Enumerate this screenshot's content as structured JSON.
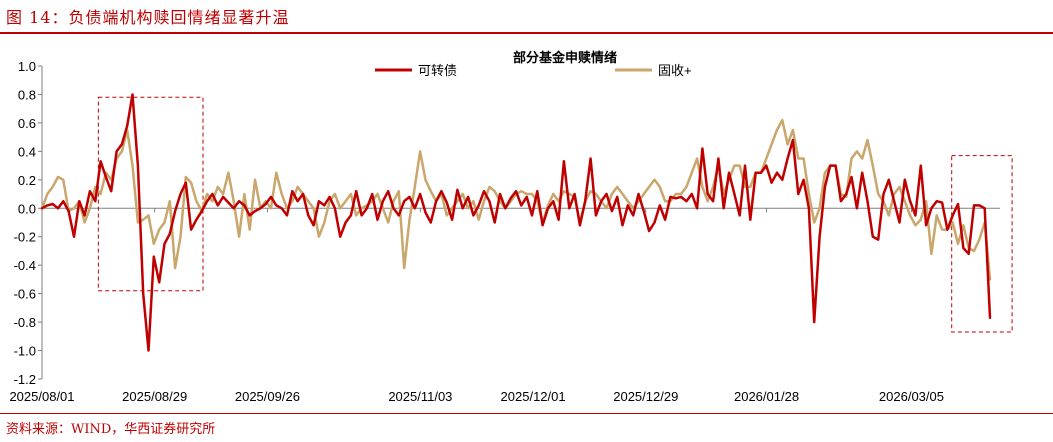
{
  "figure_title": "图 14：负债端机构赎回情绪显著升温",
  "source": "资料来源：WIND，华西证券研究所",
  "chart_data": {
    "type": "line",
    "title": "部分基金申赎情绪",
    "xlabel": "",
    "ylabel": "",
    "ylim": [
      -1.2,
      1.0
    ],
    "yticks": [
      1.0,
      0.8,
      0.6,
      0.4,
      0.2,
      0.0,
      -0.2,
      -0.4,
      -0.6,
      -0.8,
      -1.0,
      -1.2
    ],
    "ytick_labels": [
      "1.0",
      "0.8",
      "0.6",
      "0.4",
      "0.2",
      "0.0",
      "-0.2",
      "-0.4",
      "-0.6",
      "-0.8",
      "-1.0",
      "-1.2"
    ],
    "x_start": "2025/08/01",
    "x_end": "2026/03/27",
    "xticks": [
      "2025/08/01",
      "2025/08/29",
      "2025/09/26",
      "2025/11/03",
      "2025/12/01",
      "2025/12/29",
      "2026/01/28",
      "2026/03/05"
    ],
    "grid": false,
    "legend_position": "top-center",
    "colors": {
      "可转债": "#c00000",
      "固收+": "#c9a66b",
      "highlight_box": "#c00000"
    },
    "series": [
      {
        "name": "可转债",
        "values": [
          0.0,
          0.02,
          0.03,
          0.0,
          0.05,
          -0.02,
          -0.2,
          0.05,
          -0.05,
          0.12,
          0.05,
          0.33,
          0.22,
          0.12,
          0.4,
          0.45,
          0.58,
          0.8,
          0.3,
          -0.6,
          -1.0,
          -0.34,
          -0.52,
          -0.25,
          -0.18,
          -0.02,
          0.1,
          0.18,
          -0.15,
          -0.08,
          -0.02,
          0.05,
          0.1,
          0.02,
          0.08,
          0.04,
          0.0,
          0.05,
          0.02,
          -0.05,
          -0.02,
          0.0,
          0.03,
          0.08,
          0.02,
          0.0,
          -0.05,
          0.12,
          0.05,
          0.1,
          -0.05,
          -0.12,
          0.05,
          0.02,
          0.08,
          0.0,
          -0.2,
          -0.1,
          -0.05,
          0.12,
          -0.05,
          0.0,
          0.1,
          -0.08,
          0.05,
          0.12,
          0.0,
          -0.05,
          0.05,
          0.08,
          0.0,
          0.1,
          -0.03,
          -0.1,
          0.05,
          0.12,
          0.04,
          -0.08,
          0.13,
          0.0,
          0.08,
          -0.05,
          0.02,
          0.12,
          0.05,
          -0.1,
          0.1,
          0.0,
          0.07,
          0.12,
          0.02,
          0.08,
          -0.05,
          0.12,
          -0.12,
          0.0,
          0.05,
          -0.08,
          0.33,
          0.0,
          0.1,
          -0.12,
          0.05,
          0.35,
          -0.05,
          0.05,
          0.1,
          -0.02,
          0.08,
          -0.12,
          0.02,
          -0.05,
          0.1,
          -0.02,
          -0.16,
          -0.1,
          0.02,
          -0.08,
          0.08,
          0.07,
          0.08,
          0.05,
          0.1,
          0.0,
          0.42,
          0.1,
          0.05,
          0.35,
          0.0,
          0.25,
          0.1,
          -0.05,
          0.3,
          -0.08,
          0.25,
          0.25,
          0.3,
          0.18,
          0.25,
          0.2,
          0.35,
          0.48,
          0.1,
          0.2,
          0.0,
          -0.8,
          -0.2,
          0.15,
          0.3,
          0.3,
          0.05,
          0.1,
          0.22,
          0.0,
          0.25,
          0.05,
          -0.2,
          -0.22,
          0.1,
          0.2,
          0.05,
          -0.1,
          0.2,
          0.05,
          -0.05,
          0.3,
          -0.12,
          0.0,
          0.05,
          0.04,
          -0.15,
          -0.05,
          0.03,
          -0.28,
          -0.32,
          0.02,
          0.02,
          0.0,
          -0.77
        ]
      },
      {
        "name": "固收+",
        "values": [
          0.0,
          0.1,
          0.15,
          0.22,
          0.2,
          -0.02,
          0.0,
          0.05,
          -0.1,
          0.0,
          0.15,
          0.1,
          0.25,
          0.2,
          0.35,
          0.4,
          0.55,
          0.3,
          -0.1,
          -0.08,
          -0.05,
          -0.25,
          -0.15,
          -0.1,
          0.05,
          -0.42,
          -0.2,
          0.22,
          0.18,
          0.05,
          -0.02,
          0.1,
          0.05,
          0.15,
          0.1,
          0.25,
          0.05,
          -0.2,
          0.1,
          -0.15,
          0.2,
          0.0,
          0.05,
          0.0,
          0.25,
          0.1,
          0.0,
          0.05,
          0.15,
          0.1,
          0.05,
          0.0,
          -0.2,
          -0.1,
          0.05,
          0.1,
          0.0,
          0.05,
          0.1,
          -0.05,
          0.0,
          0.02,
          0.05,
          0.1,
          0.0,
          -0.1,
          0.05,
          0.12,
          -0.42,
          -0.08,
          0.15,
          0.4,
          0.2,
          0.12,
          0.05,
          0.1,
          -0.05,
          0.0,
          0.05,
          0.1,
          0.0,
          0.05,
          -0.08,
          0.05,
          0.15,
          0.12,
          0.05,
          0.0,
          0.05,
          0.1,
          0.12,
          0.1,
          0.1,
          0.05,
          -0.1,
          0.02,
          0.1,
          0.05,
          0.12,
          0.1,
          0.08,
          -0.1,
          0.05,
          0.12,
          0.1,
          0.05,
          0.0,
          0.1,
          0.15,
          0.1,
          0.05,
          0.0,
          0.05,
          0.1,
          0.15,
          0.2,
          0.15,
          0.05,
          0.05,
          0.1,
          0.1,
          0.15,
          0.25,
          0.35,
          0.15,
          0.05,
          0.15,
          0.3,
          0.1,
          0.2,
          0.3,
          0.3,
          0.15,
          0.15,
          0.25,
          0.25,
          0.35,
          0.45,
          0.55,
          0.62,
          0.45,
          0.55,
          0.35,
          0.35,
          0.1,
          -0.1,
          0.0,
          0.25,
          0.3,
          0.3,
          0.1,
          0.08,
          0.35,
          0.4,
          0.35,
          0.48,
          0.3,
          0.1,
          0.05,
          -0.05,
          0.1,
          0.15,
          0.05,
          -0.05,
          -0.12,
          -0.08,
          0.05,
          -0.32,
          -0.05,
          -0.15,
          -0.15,
          -0.1,
          -0.25,
          -0.12,
          -0.28,
          -0.3,
          -0.22,
          -0.1,
          -0.5
        ]
      }
    ],
    "highlight_boxes": [
      {
        "x0": "2025/08/15",
        "x1": "2025/09/10",
        "y0": -0.58,
        "y1": 0.78
      },
      {
        "x0": "2026/03/15",
        "x1": "2026/03/30",
        "y0": -0.87,
        "y1": 0.37
      }
    ]
  }
}
